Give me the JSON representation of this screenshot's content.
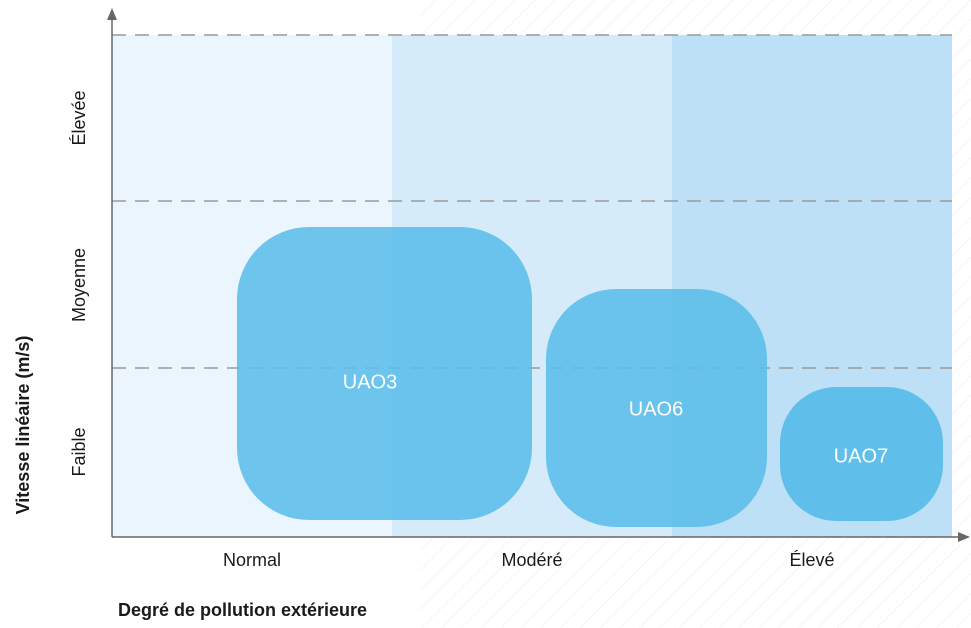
{
  "x_axis": {
    "title": "Degré de pollution extérieure",
    "labels": [
      "Normal",
      "Modéré",
      "Élevé"
    ]
  },
  "y_axis": {
    "title": "Vitesse linéaire (m/s)",
    "labels": [
      "Élevée",
      "Moyenne",
      "Faible"
    ]
  },
  "boxes": [
    {
      "label": "UAO3"
    },
    {
      "label": "UAO6"
    },
    {
      "label": "UAO7"
    }
  ]
}
